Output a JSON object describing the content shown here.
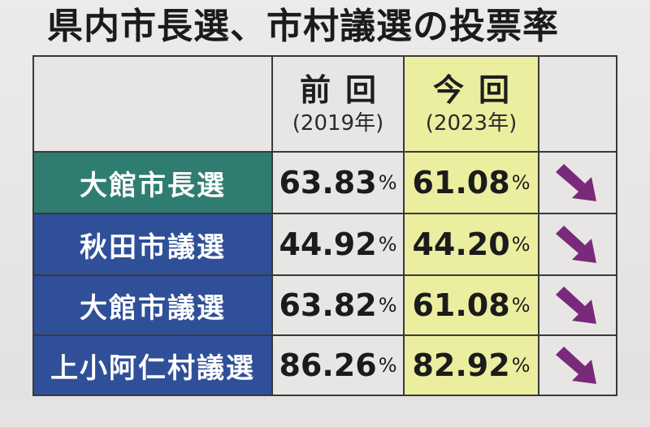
{
  "title": "県内市長選、市村議選の投票率",
  "header": {
    "prev_label": "前回",
    "prev_year": "(2019年)",
    "curr_label": "今回",
    "curr_year": "(2023年)"
  },
  "rows": [
    {
      "name": "大館市長選",
      "prev": "63.83",
      "curr": "61.08",
      "unit": "%",
      "color": "#2f7d70",
      "trend": "down"
    },
    {
      "name": "秋田市議選",
      "prev": "44.92",
      "curr": "44.20",
      "unit": "%",
      "color": "#2f4f98",
      "trend": "down"
    },
    {
      "name": "大館市議選",
      "prev": "63.82",
      "curr": "61.08",
      "unit": "%",
      "color": "#2f4f98",
      "trend": "down"
    },
    {
      "name": "上小阿仁村議選",
      "prev": "86.26",
      "curr": "82.92",
      "unit": "%",
      "color": "#2f4f98",
      "trend": "down"
    }
  ],
  "colors": {
    "arrow": "#7a2a7a",
    "current_highlight": "#ebee9f"
  },
  "icons": {
    "trend_down": "down-right-arrow-icon"
  }
}
